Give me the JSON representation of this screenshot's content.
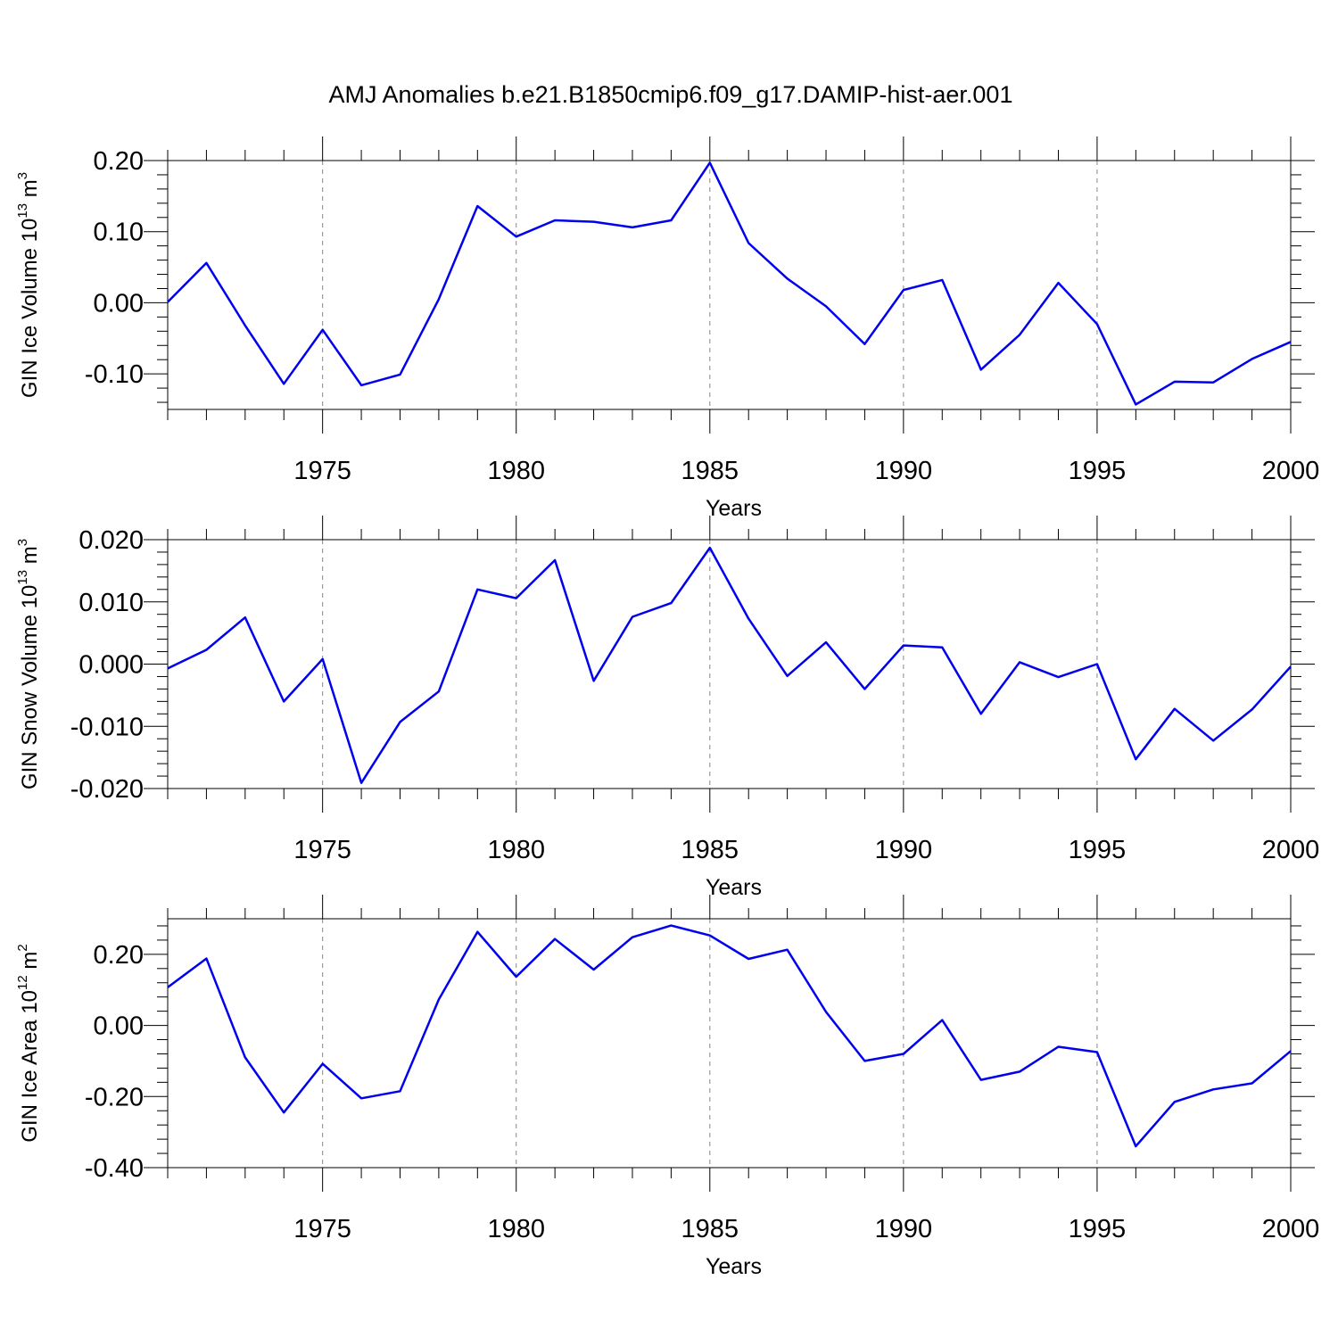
{
  "title": "AMJ Anomalies b.e21.B1850cmip6.f09_g17.DAMIP-hist-aer.001",
  "chart_data": [
    {
      "type": "line",
      "xlabel": "Years",
      "ylabel_main": "GIN Ice Volume 10",
      "ylabel_exp": "13",
      "ylabel_unit": " m",
      "ylabel_unit_exp": "3",
      "xlim": [
        1971,
        2000
      ],
      "ylim": [
        -0.15,
        0.2
      ],
      "xticks": [
        "1975",
        "1980",
        "1985",
        "1990",
        "1995",
        "2000"
      ],
      "yticks": [
        "0.20",
        "0.10",
        "0.00",
        "-0.10"
      ],
      "grid": "vertical dashed at 1975, 1980, 1985, 1990, 1995",
      "line_color": "#0000ee",
      "x": [
        1971,
        1972,
        1973,
        1974,
        1975,
        1976,
        1977,
        1978,
        1979,
        1980,
        1981,
        1982,
        1983,
        1984,
        1985,
        1986,
        1987,
        1988,
        1989,
        1990,
        1991,
        1992,
        1993,
        1994,
        1995,
        1996,
        1997,
        1998,
        1999,
        2000
      ],
      "values": [
        0.001,
        0.056,
        -0.032,
        -0.114,
        -0.038,
        -0.116,
        -0.101,
        0.005,
        0.136,
        0.093,
        0.116,
        0.114,
        0.106,
        0.116,
        0.197,
        0.084,
        0.034,
        -0.005,
        -0.058,
        0.018,
        0.032,
        -0.094,
        -0.045,
        0.028,
        -0.03,
        -0.143,
        -0.111,
        -0.112,
        -0.079,
        -0.055
      ]
    },
    {
      "type": "line",
      "xlabel": "Years",
      "ylabel_main": "GIN Snow Volume 10",
      "ylabel_exp": "13",
      "ylabel_unit": " m",
      "ylabel_unit_exp": "3",
      "xlim": [
        1971,
        2000
      ],
      "ylim": [
        -0.02,
        0.02
      ],
      "xticks": [
        "1975",
        "1980",
        "1985",
        "1990",
        "1995",
        "2000"
      ],
      "yticks": [
        "0.020",
        "0.010",
        "0.000",
        "-0.010",
        "-0.020"
      ],
      "grid": "vertical dashed at 1975, 1980, 1985, 1990, 1995",
      "line_color": "#0000ee",
      "x": [
        1971,
        1972,
        1973,
        1974,
        1975,
        1976,
        1977,
        1978,
        1979,
        1980,
        1981,
        1982,
        1983,
        1984,
        1985,
        1986,
        1987,
        1988,
        1989,
        1990,
        1991,
        1992,
        1993,
        1994,
        1995,
        1996,
        1997,
        1998,
        1999,
        2000
      ],
      "values": [
        -0.0007,
        0.0023,
        0.0075,
        -0.006,
        0.0008,
        -0.0191,
        -0.0093,
        -0.0044,
        0.012,
        0.0106,
        0.0167,
        -0.0027,
        0.0076,
        0.0098,
        0.0187,
        0.0073,
        -0.0019,
        0.0035,
        -0.004,
        0.003,
        0.0027,
        -0.008,
        0.0003,
        -0.0021,
        0.0,
        -0.0153,
        -0.0072,
        -0.0123,
        -0.0073,
        -0.0004
      ]
    },
    {
      "type": "line",
      "xlabel": "Years",
      "ylabel_main": "GIN Ice Area 10",
      "ylabel_exp": "12",
      "ylabel_unit": " m",
      "ylabel_unit_exp": "2",
      "xlim": [
        1971,
        2000
      ],
      "ylim": [
        -0.4,
        0.3
      ],
      "xticks": [
        "1975",
        "1980",
        "1985",
        "1990",
        "1995",
        "2000"
      ],
      "yticks": [
        "0.20",
        "0.00",
        "-0.20",
        "-0.40"
      ],
      "grid": "vertical dashed at 1975, 1980, 1985, 1990, 1995",
      "line_color": "#0000ee",
      "x": [
        1971,
        1972,
        1973,
        1974,
        1975,
        1976,
        1977,
        1978,
        1979,
        1980,
        1981,
        1982,
        1983,
        1984,
        1985,
        1986,
        1987,
        1988,
        1989,
        1990,
        1991,
        1992,
        1993,
        1994,
        1995,
        1996,
        1997,
        1998,
        1999,
        2000
      ],
      "values": [
        0.107,
        0.188,
        -0.09,
        -0.245,
        -0.108,
        -0.205,
        -0.185,
        0.073,
        0.263,
        0.137,
        0.243,
        0.157,
        0.248,
        0.281,
        0.253,
        0.187,
        0.213,
        0.038,
        -0.1,
        -0.08,
        0.015,
        -0.153,
        -0.13,
        -0.06,
        -0.075,
        -0.34,
        -0.215,
        -0.18,
        -0.163,
        -0.072
      ]
    }
  ]
}
